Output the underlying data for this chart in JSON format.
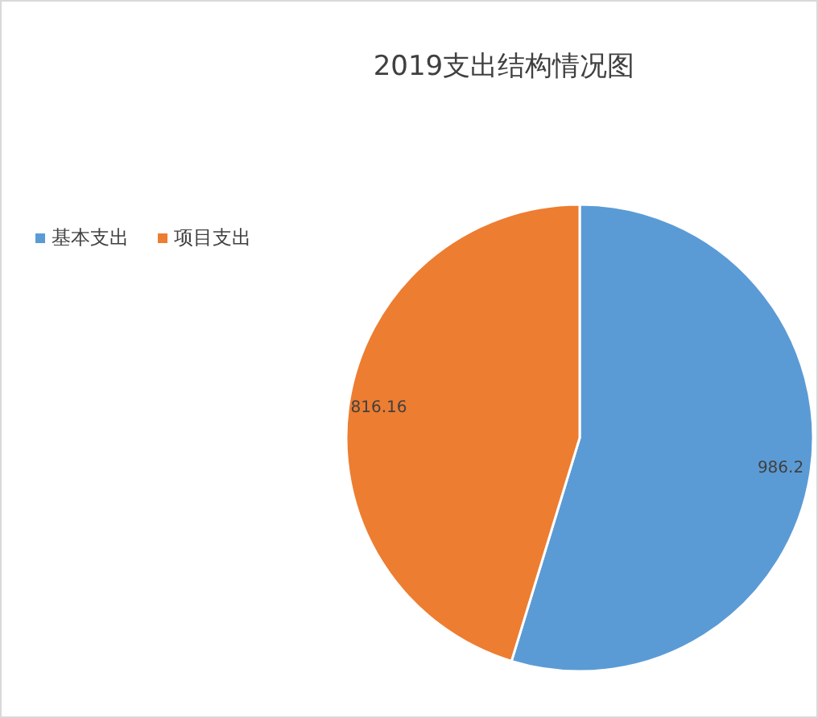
{
  "chart_data": {
    "type": "pie",
    "title": "2019支出结构情况图",
    "categories": [
      "基本支出",
      "项目支出"
    ],
    "values": [
      986.2,
      816.16
    ],
    "colors": [
      "#5b9bd5",
      "#ed7d31"
    ],
    "data_labels": true,
    "legend": "left"
  }
}
